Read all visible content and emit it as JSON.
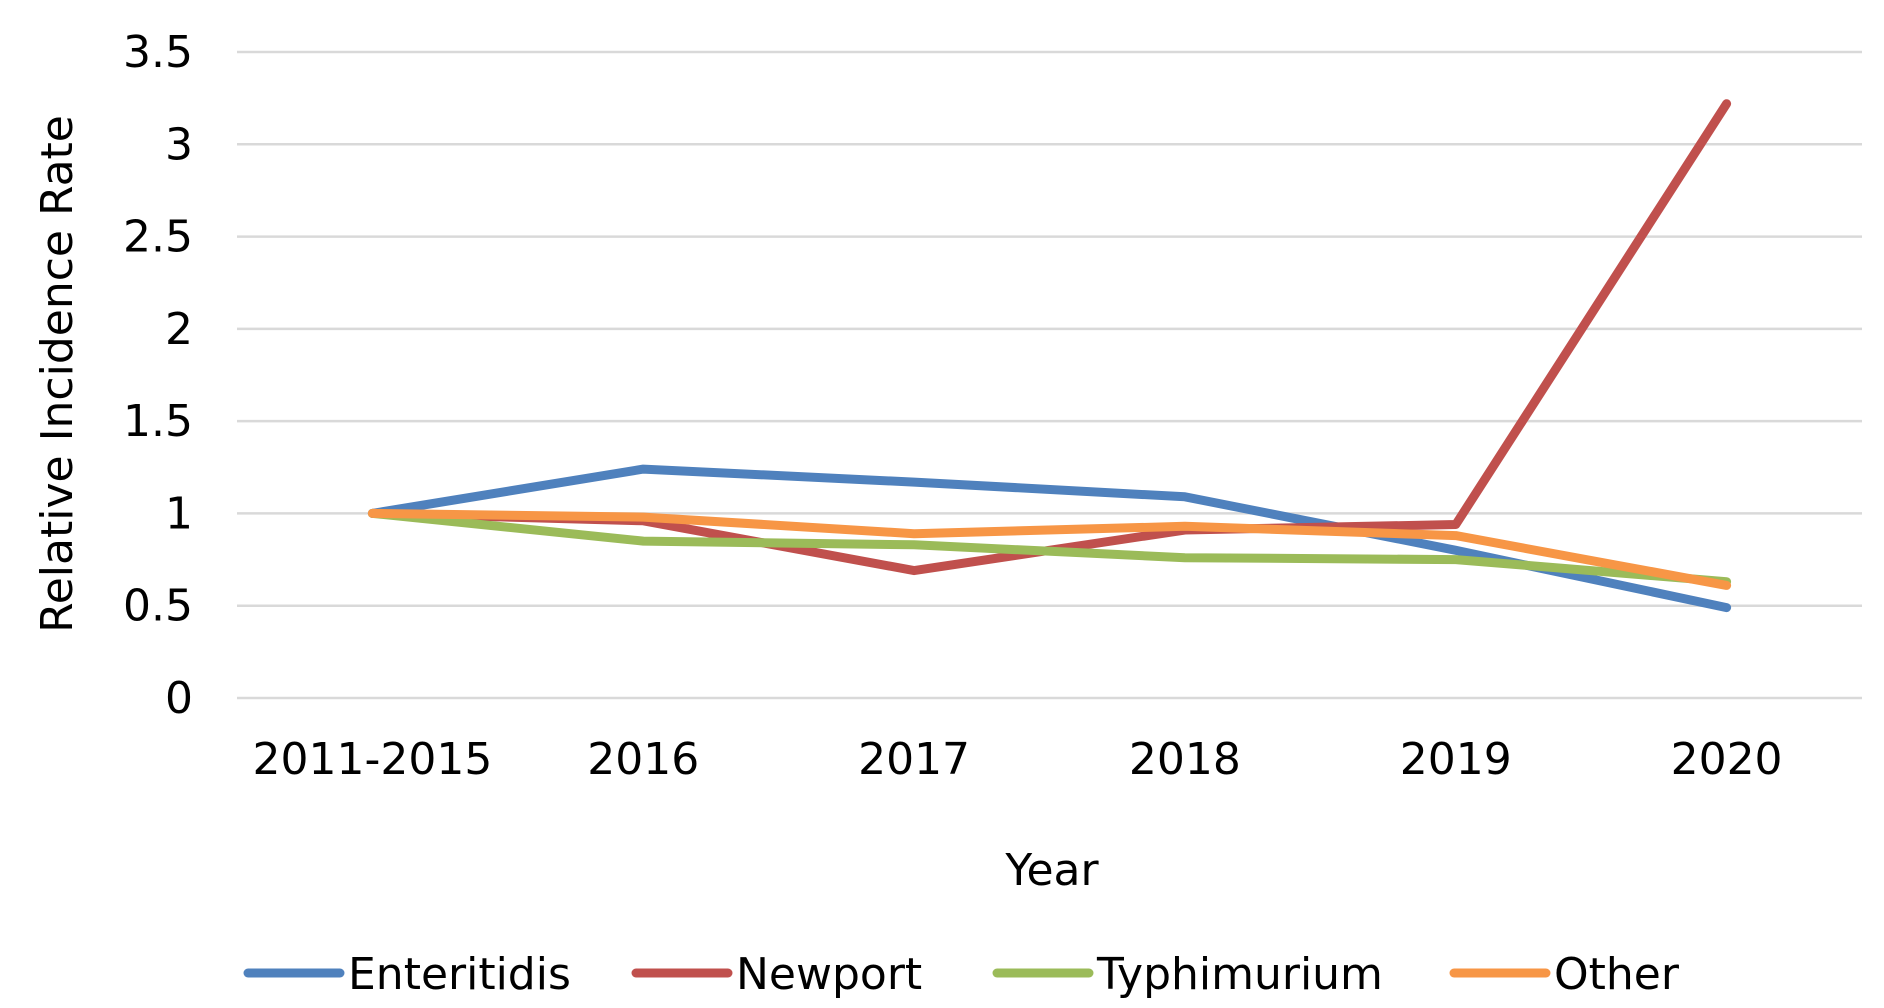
{
  "chart_data": {
    "type": "line",
    "title": "",
    "xlabel": "Year",
    "ylabel": "Relative Incidence Rate",
    "categories": [
      "2011-2015",
      "2016",
      "2017",
      "2018",
      "2019",
      "2020"
    ],
    "ylim": [
      0,
      3.5
    ],
    "yticks": [
      "0",
      "0.5",
      "1",
      "1.5",
      "2",
      "2.5",
      "3",
      "3.5"
    ],
    "grid": true,
    "legend_position": "bottom",
    "series": [
      {
        "name": "Enteritidis",
        "color": "#4F81BD",
        "values": [
          1.0,
          1.24,
          1.17,
          1.09,
          0.8,
          0.49
        ]
      },
      {
        "name": "Newport",
        "color": "#C0504D",
        "values": [
          1.0,
          0.96,
          0.69,
          0.91,
          0.94,
          3.22
        ]
      },
      {
        "name": "Typhimurium",
        "color": "#9BBB59",
        "values": [
          1.0,
          0.85,
          0.83,
          0.76,
          0.75,
          0.63
        ]
      },
      {
        "name": "Other",
        "color": "#F79646",
        "values": [
          1.0,
          0.98,
          0.89,
          0.93,
          0.88,
          0.61
        ]
      }
    ]
  }
}
